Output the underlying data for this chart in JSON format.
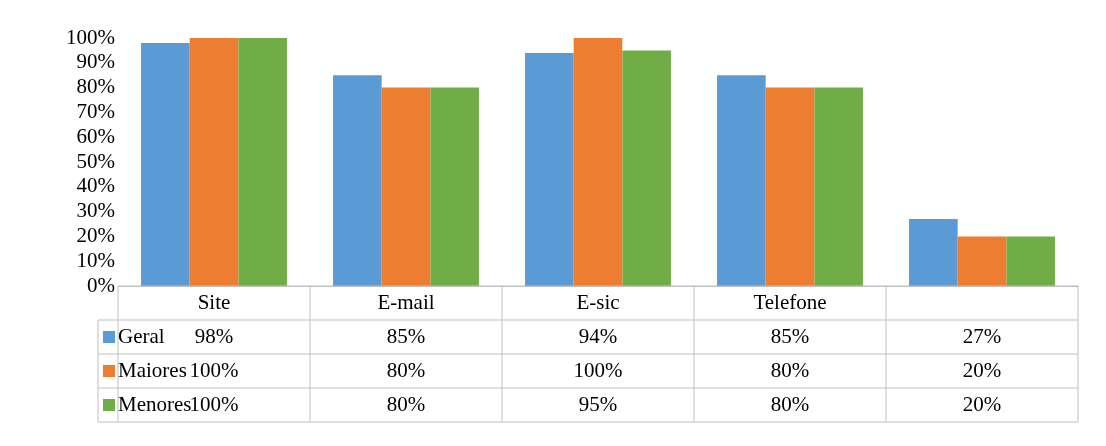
{
  "chart_data": {
    "type": "bar",
    "categories": [
      "Site",
      "E-mail",
      "E-sic",
      "Telefone",
      null
    ],
    "series": [
      {
        "name": "Geral",
        "color": "#5b9bd5",
        "values": [
          98,
          85,
          94,
          85,
          27
        ],
        "value_labels": [
          "98%",
          "85%",
          "94%",
          "85%",
          "27%"
        ]
      },
      {
        "name": "Maiores",
        "color": "#ed7d31",
        "values": [
          100,
          80,
          100,
          80,
          20
        ],
        "value_labels": [
          "100%",
          "80%",
          "100%",
          "80%",
          "20%"
        ]
      },
      {
        "name": "Menores",
        "color": "#70ad47",
        "values": [
          100,
          80,
          95,
          80,
          20
        ],
        "value_labels": [
          "100%",
          "80%",
          "95%",
          "80%",
          "20%"
        ]
      }
    ],
    "ylim": [
      0,
      100
    ],
    "yticks": [
      {
        "value": 0,
        "label": "0%"
      },
      {
        "value": 10,
        "label": "10%"
      },
      {
        "value": 20,
        "label": "20%"
      },
      {
        "value": 30,
        "label": "30%"
      },
      {
        "value": 40,
        "label": "40%"
      },
      {
        "value": 50,
        "label": "50%"
      },
      {
        "value": 60,
        "label": "60%"
      },
      {
        "value": 70,
        "label": "70%"
      },
      {
        "value": 80,
        "label": "80%"
      },
      {
        "value": 90,
        "label": "90%"
      },
      {
        "value": 100,
        "label": "100%"
      }
    ],
    "legend": "bottom"
  }
}
